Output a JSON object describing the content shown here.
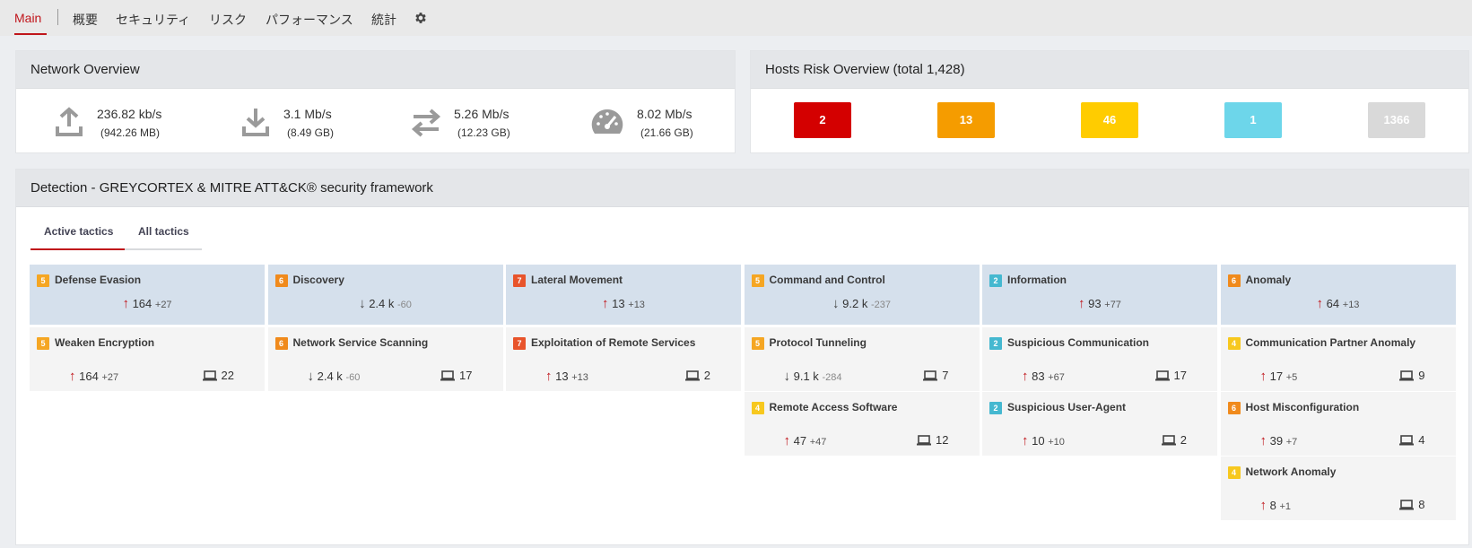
{
  "nav": {
    "tabs": [
      "Main",
      "概要",
      "セキュリティ",
      "リスク",
      "パフォーマンス",
      "統計"
    ],
    "settings_icon": "gear-icon"
  },
  "network": {
    "title": "Network Overview",
    "metrics": [
      {
        "icon": "upload-icon",
        "value": "236.82 kb/s",
        "total": "(942.26 MB)"
      },
      {
        "icon": "download-icon",
        "value": "3.1 Mb/s",
        "total": "(8.49 GB)"
      },
      {
        "icon": "transfer-icon",
        "value": "5.26 Mb/s",
        "total": "(12.23 GB)"
      },
      {
        "icon": "speedometer-icon",
        "value": "8.02 Mb/s",
        "total": "(21.66 GB)"
      }
    ]
  },
  "hosts_risk": {
    "title": "Hosts Risk Overview (total 1,428)",
    "levels": [
      {
        "count": "2",
        "color": "#d40000"
      },
      {
        "count": "13",
        "color": "#f59c00"
      },
      {
        "count": "46",
        "color": "#ffcc00"
      },
      {
        "count": "1",
        "color": "#6dd6ea"
      },
      {
        "count": "1366",
        "color": "#d9d9d9"
      }
    ]
  },
  "detection": {
    "title": "Detection - GREYCORTEX & MITRE ATT&CK® security framework",
    "tabs": [
      "Active tactics",
      "All tactics"
    ],
    "colors": {
      "5": "#f5a623",
      "6": "#f08a1c",
      "7": "#e8542b",
      "2": "#45b8d0",
      "4": "#f7c81e"
    },
    "columns": [
      {
        "tactic": {
          "severity": "5",
          "name": "Defense Evasion",
          "direction": "up",
          "value": "164",
          "delta": "+27"
        },
        "techniques": [
          {
            "severity": "5",
            "name": "Weaken Encryption",
            "direction": "up",
            "value": "164",
            "delta": "+27",
            "hosts": "22"
          }
        ]
      },
      {
        "tactic": {
          "severity": "6",
          "name": "Discovery",
          "direction": "down",
          "value": "2.4 k",
          "delta": "-60"
        },
        "techniques": [
          {
            "severity": "6",
            "name": "Network Service Scanning",
            "direction": "down",
            "value": "2.4 k",
            "delta": "-60",
            "hosts": "17"
          }
        ]
      },
      {
        "tactic": {
          "severity": "7",
          "name": "Lateral Movement",
          "direction": "up",
          "value": "13",
          "delta": "+13"
        },
        "techniques": [
          {
            "severity": "7",
            "name": "Exploitation of Remote Services",
            "direction": "up",
            "value": "13",
            "delta": "+13",
            "hosts": "2"
          }
        ]
      },
      {
        "tactic": {
          "severity": "5",
          "name": "Command and Control",
          "direction": "down",
          "value": "9.2 k",
          "delta": "-237"
        },
        "techniques": [
          {
            "severity": "5",
            "name": "Protocol Tunneling",
            "direction": "down",
            "value": "9.1 k",
            "delta": "-284",
            "hosts": "7"
          },
          {
            "severity": "4",
            "name": "Remote Access Software",
            "direction": "up",
            "value": "47",
            "delta": "+47",
            "hosts": "12"
          }
        ]
      },
      {
        "tactic": {
          "severity": "2",
          "name": "Information",
          "direction": "up",
          "value": "93",
          "delta": "+77"
        },
        "techniques": [
          {
            "severity": "2",
            "name": "Suspicious Communication",
            "direction": "up",
            "value": "83",
            "delta": "+67",
            "hosts": "17"
          },
          {
            "severity": "2",
            "name": "Suspicious User-Agent",
            "direction": "up",
            "value": "10",
            "delta": "+10",
            "hosts": "2"
          }
        ]
      },
      {
        "tactic": {
          "severity": "6",
          "name": "Anomaly",
          "direction": "up",
          "value": "64",
          "delta": "+13"
        },
        "techniques": [
          {
            "severity": "4",
            "name": "Communication Partner Anomaly",
            "direction": "up",
            "value": "17",
            "delta": "+5",
            "hosts": "9"
          },
          {
            "severity": "6",
            "name": "Host Misconfiguration",
            "direction": "up",
            "value": "39",
            "delta": "+7",
            "hosts": "4"
          },
          {
            "severity": "4",
            "name": "Network Anomaly",
            "direction": "up",
            "value": "8",
            "delta": "+1",
            "hosts": "8"
          }
        ]
      }
    ]
  }
}
